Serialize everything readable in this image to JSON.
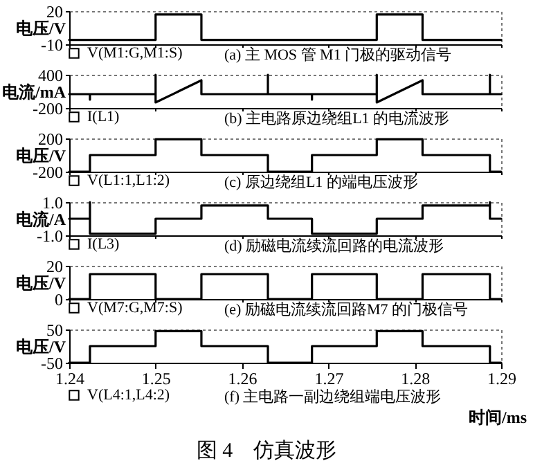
{
  "chart_data": [
    {
      "type": "line",
      "ylabel": "电压/V",
      "xlim": [
        1.24,
        1.29
      ],
      "xticks": [
        1.24,
        1.25,
        1.26,
        1.27,
        1.28,
        1.29
      ],
      "ylim": [
        -10,
        20
      ],
      "yticks": [
        -10,
        20
      ],
      "tick_labels": "y",
      "legend": "bottom",
      "annotations": [
        "(a) 主 MOS 管 M1 门极的驱动信号"
      ],
      "series": [
        {
          "name": "V(M1:G,M1:S)",
          "color": "#000000",
          "x": [
            1.24,
            1.25,
            1.25,
            1.2553,
            1.2553,
            1.2756,
            1.2756,
            1.2809,
            1.2809,
            1.29
          ],
          "values": [
            -6,
            -6,
            17,
            17,
            -6,
            -6,
            17,
            17,
            -6,
            -6
          ]
        }
      ]
    },
    {
      "type": "line",
      "ylabel": "电流/mA",
      "xlim": [
        1.24,
        1.29
      ],
      "xticks": [
        1.24,
        1.25,
        1.26,
        1.27,
        1.28,
        1.29
      ],
      "ylim": [
        -200,
        400
      ],
      "yticks": [
        -200,
        400
      ],
      "tick_labels": "y",
      "legend": "bottom",
      "annotations": [
        "(b) 主电路原边绕组L1 的电流波形"
      ],
      "series": [
        {
          "name": "I(L1)",
          "color": "#000000",
          "x": [
            1.24,
            1.2424,
            1.2424,
            1.2424,
            1.25,
            1.25,
            1.25,
            1.2553,
            1.2553,
            1.263,
            1.263,
            1.263,
            1.2681,
            1.2681,
            1.2681,
            1.2756,
            1.2756,
            1.2756,
            1.2809,
            1.2809,
            1.2887,
            1.2887,
            1.2887,
            1.29
          ],
          "values": [
            50,
            50,
            -50,
            50,
            50,
            400,
            -100,
            300,
            50,
            50,
            400,
            50,
            50,
            -50,
            50,
            50,
            400,
            -100,
            300,
            50,
            50,
            400,
            50,
            50
          ]
        }
      ]
    },
    {
      "type": "line",
      "ylabel": "电压/V",
      "xlim": [
        1.24,
        1.29
      ],
      "xticks": [
        1.24,
        1.25,
        1.26,
        1.27,
        1.28,
        1.29
      ],
      "ylim": [
        -200,
        200
      ],
      "yticks": [
        -200,
        200
      ],
      "tick_labels": "y",
      "legend": "bottom",
      "annotations": [
        "(c) 原边绕组L1 的端电压波形"
      ],
      "series": [
        {
          "name": "V(L1:1,L1:2)",
          "color": "#000000",
          "x": [
            1.24,
            1.2424,
            1.2424,
            1.25,
            1.25,
            1.2553,
            1.2553,
            1.263,
            1.263,
            1.2681,
            1.2681,
            1.2756,
            1.2756,
            1.2809,
            1.2809,
            1.2887,
            1.2887,
            1.29
          ],
          "values": [
            -200,
            -200,
            0,
            0,
            190,
            190,
            0,
            0,
            -200,
            -200,
            0,
            0,
            190,
            190,
            0,
            0,
            -200,
            -200
          ]
        }
      ]
    },
    {
      "type": "line",
      "ylabel": "电流/A",
      "xlim": [
        1.24,
        1.29
      ],
      "xticks": [
        1.24,
        1.25,
        1.26,
        1.27,
        1.28,
        1.29
      ],
      "ylim": [
        -1,
        1
      ],
      "yticks": [
        {
          "value": -1,
          "label": "-1.0"
        },
        {
          "value": 1,
          "label": "1.0"
        }
      ],
      "tick_labels": "y",
      "legend": "bottom",
      "annotations": [
        "(d) 励磁电流续流回路的电流波形"
      ],
      "series": [
        {
          "name": "I(L3)",
          "color": "#000000",
          "x": [
            1.24,
            1.2424,
            1.2424,
            1.2424,
            1.25,
            1.25,
            1.2553,
            1.2553,
            1.263,
            1.263,
            1.2681,
            1.2681,
            1.2756,
            1.2756,
            1.2809,
            1.2809,
            1.2887,
            1.2887,
            1.2887,
            1.29
          ],
          "values": [
            0,
            0,
            1,
            -0.9,
            -0.9,
            0,
            0,
            0.8,
            0.8,
            0,
            0,
            -0.9,
            -0.9,
            0,
            0,
            0.8,
            0.8,
            1,
            0,
            0
          ]
        }
      ]
    },
    {
      "type": "line",
      "ylabel": "电压/V",
      "xlim": [
        1.24,
        1.29
      ],
      "xticks": [
        1.24,
        1.25,
        1.26,
        1.27,
        1.28,
        1.29
      ],
      "ylim": [
        0,
        20
      ],
      "yticks": [
        0,
        20
      ],
      "tick_labels": "y",
      "legend": "bottom",
      "annotations": [
        "(e) 励磁电流续流回路M7 的门极信号"
      ],
      "series": [
        {
          "name": "V(M7:G,M7:S)",
          "color": "#000000",
          "x": [
            1.24,
            1.2424,
            1.2424,
            1.25,
            1.25,
            1.2553,
            1.2553,
            1.263,
            1.263,
            1.2681,
            1.2681,
            1.2756,
            1.2756,
            1.2809,
            1.2809,
            1.2887,
            1.2887,
            1.29
          ],
          "values": [
            0,
            0,
            15,
            15,
            0,
            0,
            15,
            15,
            0,
            0,
            15,
            15,
            0,
            0,
            15,
            15,
            0,
            0
          ]
        }
      ]
    },
    {
      "type": "line",
      "ylabel": "电压/V",
      "xlabel": "时间/ms",
      "xlim": [
        1.24,
        1.29
      ],
      "xticks": [
        1.24,
        1.25,
        1.26,
        1.27,
        1.28,
        1.29
      ],
      "ylim": [
        -50,
        50
      ],
      "yticks": [
        -50,
        50
      ],
      "legend": "bottom",
      "annotations": [
        "(f) 主电路一副边绕组端电压波形",
        "图 4　仿真波形"
      ],
      "series": [
        {
          "name": "V(L4:1,L4:2)",
          "color": "#000000",
          "x": [
            1.24,
            1.2424,
            1.2424,
            1.25,
            1.25,
            1.2553,
            1.2553,
            1.263,
            1.263,
            1.2681,
            1.2681,
            1.2756,
            1.2756,
            1.2809,
            1.2809,
            1.2887,
            1.2887,
            1.29
          ],
          "values": [
            -50,
            -50,
            0,
            0,
            45,
            45,
            0,
            0,
            -50,
            -50,
            0,
            0,
            45,
            45,
            0,
            0,
            -50,
            -50
          ]
        }
      ]
    }
  ]
}
